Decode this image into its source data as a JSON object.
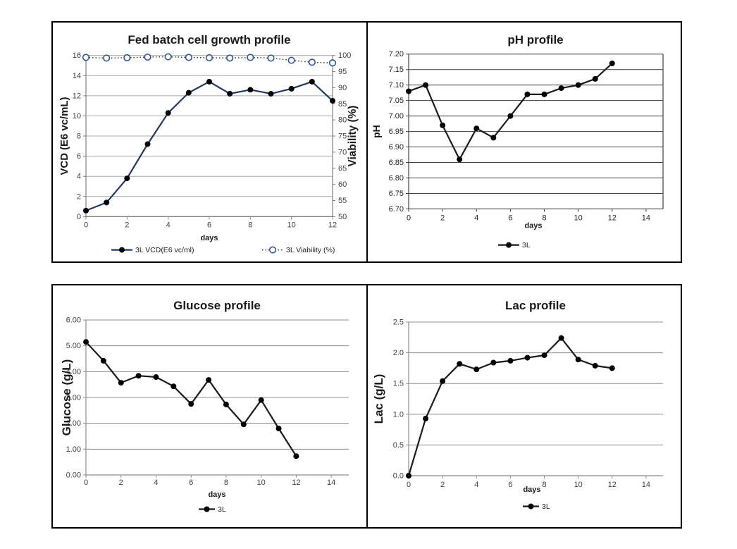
{
  "page": {
    "background": "#FFFFFF",
    "panel_border": "#000000"
  },
  "chart_data": [
    {
      "id": "growth",
      "type": "line",
      "title": "Fed batch cell growth profile",
      "xlabel": "days",
      "grid": "horizontal",
      "legend_position": "bottom",
      "grid_color": "#A8A8A8",
      "axis_color": "#808080",
      "text_color": "#404040",
      "title_color": "#1A1A1A",
      "x": [
        0,
        1,
        2,
        3,
        4,
        5,
        6,
        7,
        8,
        9,
        10,
        11,
        12
      ],
      "x_ticks": [
        0,
        2,
        4,
        6,
        8,
        10,
        12
      ],
      "x_range": [
        0,
        12
      ],
      "y_left": {
        "label": "VCD (E6 vc/mL)",
        "min": 0,
        "max": 16,
        "step": 2,
        "decimals": 0
      },
      "y_right": {
        "label": "Viability (%)",
        "min": 50,
        "max": 100,
        "step": 5,
        "decimals": 0
      },
      "series": [
        {
          "name": "3L VCD(E6 vc/ml)",
          "axis": "left",
          "line_style": "solid",
          "line_color": "#1F3864",
          "marker": "filled-circle",
          "marker_color": "#000000",
          "values": [
            0.6,
            1.4,
            3.8,
            7.2,
            10.3,
            12.3,
            13.4,
            12.2,
            12.6,
            12.2,
            12.7,
            13.4,
            11.5
          ]
        },
        {
          "name": "3L Viability (%)",
          "axis": "right",
          "line_style": "dotted",
          "line_color": "#333333",
          "marker": "open-circle",
          "marker_color": "#2E5596",
          "values": [
            99.4,
            99.2,
            99.3,
            99.5,
            99.6,
            99.4,
            99.3,
            99.2,
            99.4,
            99.2,
            98.5,
            97.9,
            97.7
          ]
        }
      ]
    },
    {
      "id": "ph",
      "type": "line",
      "title": "pH profile",
      "xlabel": "days",
      "grid": "horizontal",
      "legend_position": "bottom",
      "grid_color": "#3F3F3F",
      "axis_color": "#3F3F3F",
      "text_color": "#262626",
      "title_color": "#1A1A1A",
      "x": [
        0,
        1,
        2,
        3,
        4,
        5,
        6,
        7,
        8,
        9,
        10,
        11,
        12
      ],
      "x_ticks": [
        0,
        2,
        4,
        6,
        8,
        10,
        12,
        14
      ],
      "x_range": [
        0,
        15
      ],
      "y_left": {
        "label": "pH",
        "min": 6.7,
        "max": 7.2,
        "step": 0.05,
        "decimals": 2
      },
      "series": [
        {
          "name": "3L",
          "axis": "left",
          "line_style": "solid",
          "line_color": "#1A1A1A",
          "marker": "filled-circle",
          "marker_color": "#000000",
          "values": [
            7.08,
            7.1,
            6.97,
            6.86,
            6.96,
            6.93,
            7.0,
            7.07,
            7.07,
            7.09,
            7.1,
            7.12,
            7.17
          ]
        }
      ]
    },
    {
      "id": "glucose",
      "type": "line",
      "title": "Glucose profile",
      "xlabel": "days",
      "grid": "horizontal",
      "legend_position": "bottom",
      "grid_color": "#8C8C8C",
      "axis_color": "#8C8C8C",
      "text_color": "#404040",
      "title_color": "#1A1A1A",
      "x": [
        0,
        1,
        2,
        3,
        4,
        5,
        6,
        7,
        8,
        9,
        10,
        11,
        12
      ],
      "x_ticks": [
        0,
        2,
        4,
        6,
        8,
        10,
        12,
        14
      ],
      "x_range": [
        0,
        15
      ],
      "y_left": {
        "label": "Glucose (g/L)",
        "min": 0,
        "max": 6,
        "step": 1,
        "decimals": 2
      },
      "series": [
        {
          "name": "3L",
          "axis": "left",
          "line_style": "solid",
          "line_color": "#1A1A1A",
          "marker": "filled-circle",
          "marker_color": "#000000",
          "values": [
            5.15,
            4.42,
            3.57,
            3.84,
            3.79,
            3.43,
            2.75,
            3.68,
            2.73,
            1.96,
            2.9,
            1.8,
            0.73
          ]
        }
      ]
    },
    {
      "id": "lac",
      "type": "line",
      "title": "Lac profile",
      "xlabel": "days",
      "grid": "horizontal",
      "legend_position": "bottom",
      "grid_color": "#8C8C8C",
      "axis_color": "#8C8C8C",
      "text_color": "#404040",
      "title_color": "#1A1A1A",
      "x": [
        0,
        1,
        2,
        3,
        4,
        5,
        6,
        7,
        8,
        9,
        10,
        11,
        12
      ],
      "x_ticks": [
        0,
        2,
        4,
        6,
        8,
        10,
        12,
        14
      ],
      "x_range": [
        0,
        15
      ],
      "y_left": {
        "label": "Lac (g/L)",
        "min": 0,
        "max": 2.5,
        "step": 0.5,
        "decimals": 1
      },
      "series": [
        {
          "name": "3L",
          "axis": "left",
          "line_style": "solid",
          "line_color": "#1A1A1A",
          "marker": "filled-circle",
          "marker_color": "#000000",
          "values": [
            0.0,
            0.93,
            1.54,
            1.82,
            1.73,
            1.84,
            1.87,
            1.92,
            1.96,
            2.24,
            1.89,
            1.79,
            1.75
          ]
        }
      ]
    }
  ]
}
